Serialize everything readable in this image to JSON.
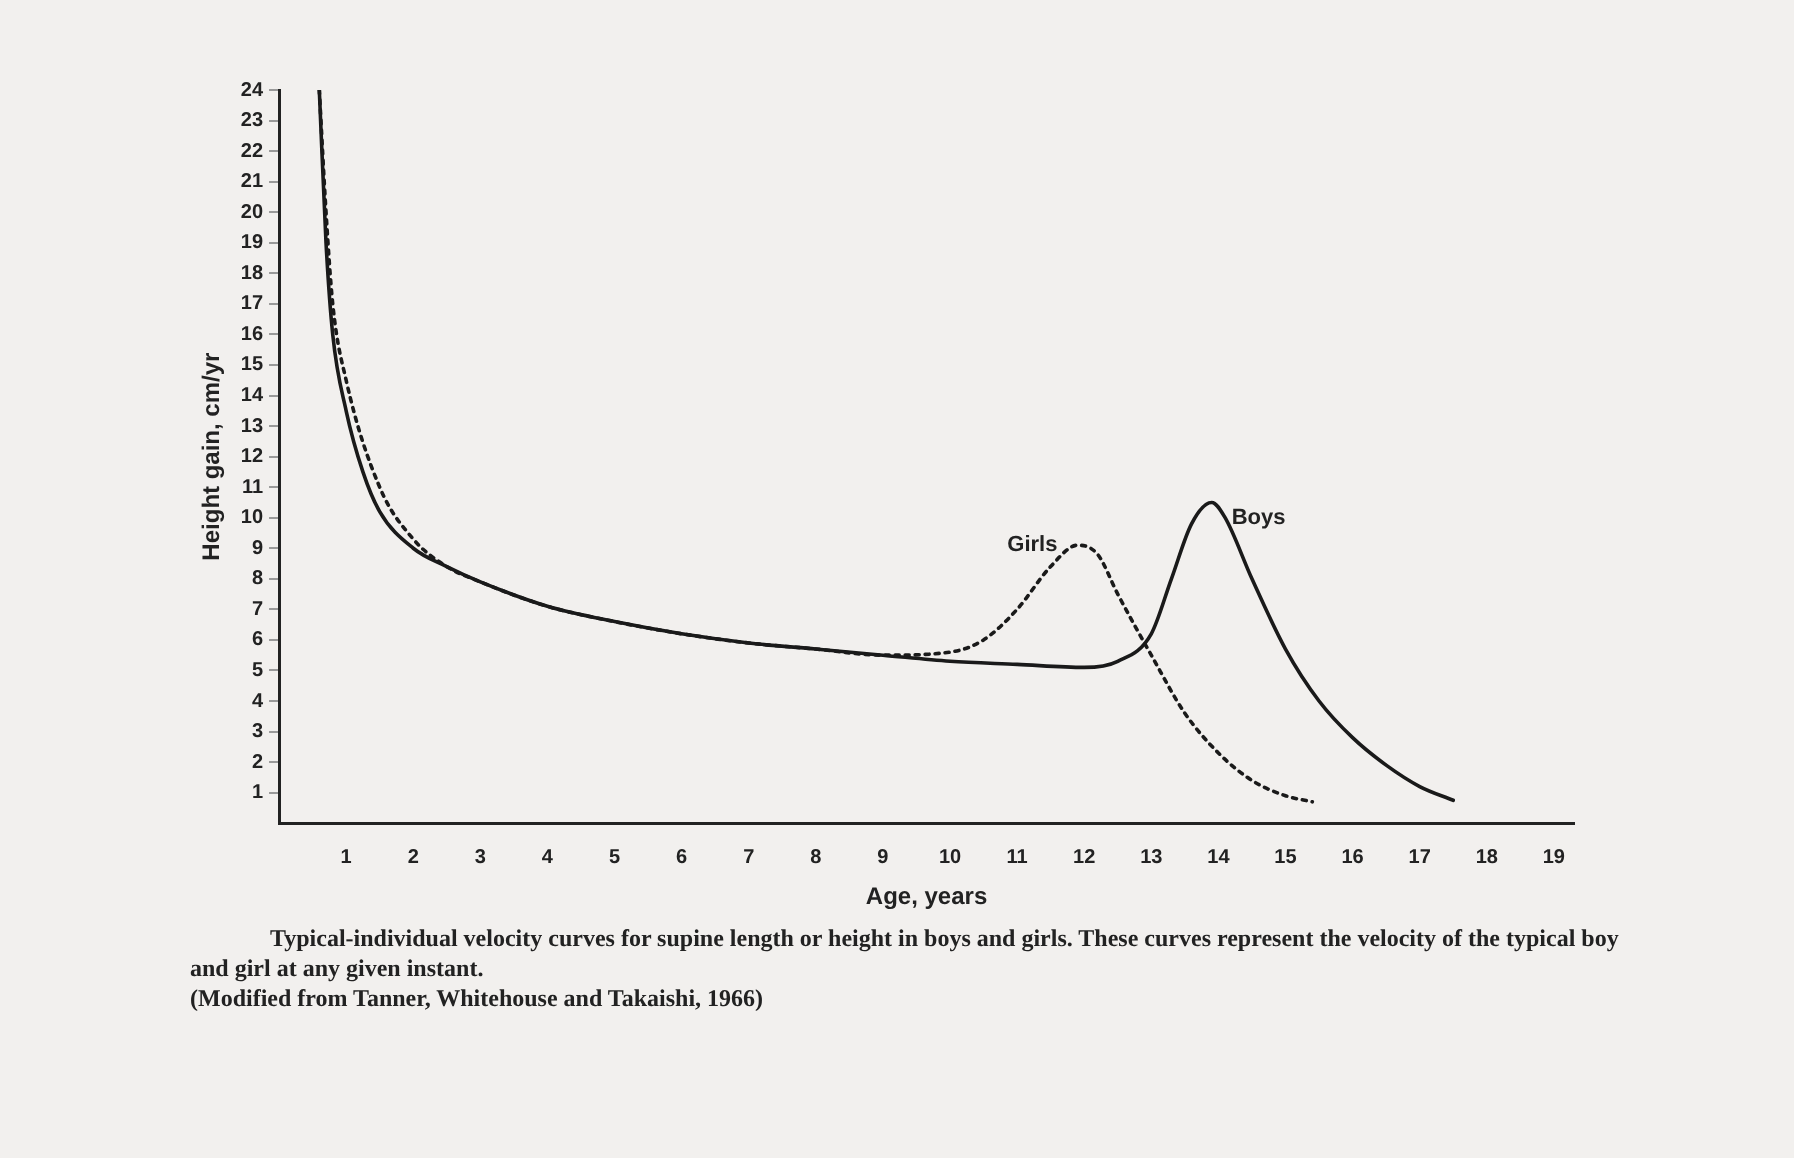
{
  "chart_data": {
    "type": "line",
    "xlabel": "Age, years",
    "ylabel": "Height gain, cm/yr",
    "xlim": [
      0,
      19.3
    ],
    "xticks": [
      1,
      2,
      3,
      4,
      5,
      6,
      7,
      8,
      9,
      10,
      11,
      12,
      13,
      14,
      15,
      16,
      17,
      18,
      19
    ],
    "ylim": [
      0,
      24
    ],
    "yticks": [
      1,
      2,
      3,
      4,
      5,
      6,
      7,
      8,
      9,
      10,
      11,
      12,
      13,
      14,
      15,
      16,
      17,
      18,
      19,
      20,
      21,
      22,
      23,
      24
    ],
    "grid": false,
    "legend": false,
    "marker": "none",
    "series": [
      {
        "name": "Girls",
        "color": "#1a1a1a",
        "line_style": "dotted",
        "x": [
          0.6,
          0.7,
          0.8,
          1,
          1.5,
          2,
          2.5,
          3,
          4,
          5,
          6,
          7,
          8,
          9,
          10,
          10.5,
          11,
          11.5,
          11.9,
          12.2,
          12.5,
          13,
          13.5,
          14,
          14.5,
          15,
          15.4
        ],
        "values": [
          24,
          20,
          17,
          14.5,
          11,
          9.3,
          8.4,
          7.9,
          7.1,
          6.6,
          6.2,
          5.9,
          5.7,
          5.5,
          5.6,
          6,
          7,
          8.4,
          9.1,
          8.8,
          7.5,
          5.5,
          3.6,
          2.3,
          1.4,
          0.9,
          0.7
        ]
      },
      {
        "name": "Boys",
        "color": "#1a1a1a",
        "line_style": "solid",
        "x": [
          0.6,
          0.7,
          0.8,
          1,
          1.25,
          1.5,
          2,
          2.5,
          3,
          4,
          5,
          6,
          7,
          8,
          9,
          10,
          11,
          12,
          12.5,
          13,
          13.3,
          13.6,
          13.9,
          14.1,
          14.5,
          15,
          15.5,
          16,
          16.5,
          17,
          17.5
        ],
        "values": [
          24,
          19,
          16,
          13.5,
          11.5,
          10.2,
          9,
          8.4,
          7.9,
          7.1,
          6.6,
          6.2,
          5.9,
          5.7,
          5.5,
          5.3,
          5.2,
          5.1,
          5.3,
          6.2,
          8,
          9.8,
          10.5,
          10,
          8,
          5.7,
          4,
          2.8,
          1.9,
          1.2,
          0.75
        ]
      }
    ],
    "annotations": [
      "Typical-individual velocity curves for supine length or height in boys and girls. These curves represent the velocity of the typical boy and girl at any given instant.",
      "(Modified from Tanner, Whitehouse and Takaishi, 1966)"
    ]
  }
}
